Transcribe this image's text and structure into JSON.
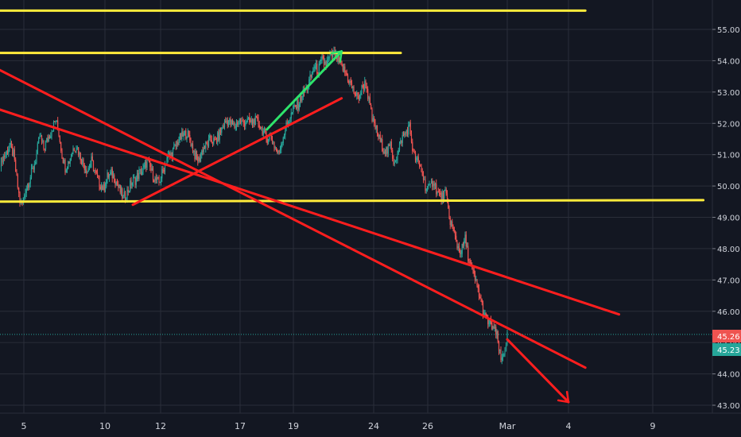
{
  "chart_data": {
    "type": "candlestick",
    "title": "",
    "xlabel": "",
    "ylabel": "",
    "x_ticks": [
      "5",
      "10",
      "12",
      "17",
      "19",
      "24",
      "26",
      "Mar",
      "4",
      "9"
    ],
    "y_ticks": [
      "43.00",
      "44.00",
      "45.00",
      "46.00",
      "47.00",
      "48.00",
      "49.00",
      "50.00",
      "51.00",
      "52.00",
      "53.00",
      "54.00",
      "55.00"
    ],
    "ylim": [
      42.85,
      55.55
    ],
    "grid": true,
    "price_markers": [
      {
        "label": "45.26",
        "value": 45.26,
        "color": "#ef5350"
      },
      {
        "label": "45.23",
        "value": 45.23,
        "color": "#26a69a"
      }
    ],
    "series": [
      {
        "values": [
          [
            0,
            50.6
          ],
          [
            3,
            50.9
          ],
          [
            7,
            51.0
          ],
          [
            12,
            51.3
          ],
          [
            17,
            51.0
          ],
          [
            21,
            50.2
          ],
          [
            25,
            49.5
          ],
          [
            28,
            49.4
          ],
          [
            32,
            49.9
          ],
          [
            37,
            50.2
          ],
          [
            42,
            50.6
          ],
          [
            46,
            51.0
          ],
          [
            50,
            51.6
          ],
          [
            55,
            51.2
          ],
          [
            60,
            51.5
          ],
          [
            65,
            51.8
          ],
          [
            70,
            52.1
          ],
          [
            74,
            51.7
          ],
          [
            78,
            51.0
          ],
          [
            82,
            50.6
          ],
          [
            87,
            50.8
          ],
          [
            92,
            51.2
          ],
          [
            96,
            51.3
          ],
          [
            100,
            51.0
          ],
          [
            105,
            50.7
          ],
          [
            110,
            50.5
          ],
          [
            115,
            50.8
          ],
          [
            120,
            50.4
          ],
          [
            125,
            50.1
          ],
          [
            130,
            49.9
          ],
          [
            135,
            50.3
          ],
          [
            140,
            50.4
          ],
          [
            145,
            50.2
          ],
          [
            150,
            49.9
          ],
          [
            155,
            49.6
          ],
          [
            160,
            49.8
          ],
          [
            165,
            50.1
          ],
          [
            170,
            50.2
          ],
          [
            175,
            50.4
          ],
          [
            180,
            50.5
          ],
          [
            185,
            50.8
          ],
          [
            190,
            50.5
          ],
          [
            195,
            50.2
          ],
          [
            200,
            50.1
          ],
          [
            205,
            50.5
          ],
          [
            210,
            50.9
          ],
          [
            215,
            51.0
          ],
          [
            220,
            51.2
          ],
          [
            225,
            51.5
          ],
          [
            230,
            51.6
          ],
          [
            235,
            51.7
          ],
          [
            240,
            51.4
          ],
          [
            245,
            51.0
          ],
          [
            250,
            50.8
          ],
          [
            255,
            51.2
          ],
          [
            260,
            51.3
          ],
          [
            265,
            51.5
          ],
          [
            270,
            51.4
          ],
          [
            275,
            51.6
          ],
          [
            280,
            51.9
          ],
          [
            285,
            52.1
          ],
          [
            290,
            52.0
          ],
          [
            295,
            51.9
          ],
          [
            300,
            52.1
          ],
          [
            305,
            52.0
          ],
          [
            310,
            52.1
          ],
          [
            315,
            52.0
          ],
          [
            320,
            52.1
          ],
          [
            325,
            52.0
          ],
          [
            330,
            51.8
          ],
          [
            335,
            51.5
          ],
          [
            340,
            51.6
          ],
          [
            345,
            51.3
          ],
          [
            350,
            51.0
          ],
          [
            355,
            51.5
          ],
          [
            360,
            51.9
          ],
          [
            365,
            52.2
          ],
          [
            370,
            52.5
          ],
          [
            375,
            52.6
          ],
          [
            380,
            52.9
          ],
          [
            385,
            53.1
          ],
          [
            390,
            53.4
          ],
          [
            395,
            53.8
          ],
          [
            400,
            53.7
          ],
          [
            405,
            54.0
          ],
          [
            410,
            53.9
          ],
          [
            415,
            54.1
          ],
          [
            420,
            54.2
          ],
          [
            425,
            54.0
          ],
          [
            430,
            53.8
          ],
          [
            435,
            53.6
          ],
          [
            440,
            53.3
          ],
          [
            445,
            53.0
          ],
          [
            450,
            52.8
          ],
          [
            455,
            53.1
          ],
          [
            460,
            53.3
          ],
          [
            464,
            52.7
          ],
          [
            468,
            52.1
          ],
          [
            472,
            51.9
          ],
          [
            477,
            51.5
          ],
          [
            482,
            51.2
          ],
          [
            487,
            51.1
          ],
          [
            491,
            51.3
          ],
          [
            495,
            50.8
          ],
          [
            500,
            51.0
          ],
          [
            505,
            51.5
          ],
          [
            510,
            51.7
          ],
          [
            515,
            51.9
          ],
          [
            520,
            51.0
          ],
          [
            525,
            50.8
          ],
          [
            530,
            50.5
          ],
          [
            535,
            50.0
          ],
          [
            540,
            49.9
          ],
          [
            545,
            50.2
          ],
          [
            550,
            49.8
          ],
          [
            555,
            49.6
          ],
          [
            560,
            49.8
          ],
          [
            565,
            49.0
          ],
          [
            570,
            48.6
          ],
          [
            575,
            48.1
          ],
          [
            580,
            47.9
          ],
          [
            585,
            48.3
          ],
          [
            590,
            47.6
          ],
          [
            595,
            47.2
          ],
          [
            600,
            46.8
          ],
          [
            605,
            46.3
          ],
          [
            610,
            45.8
          ],
          [
            615,
            45.6
          ],
          [
            620,
            45.5
          ],
          [
            625,
            45.2
          ],
          [
            630,
            44.4
          ],
          [
            635,
            44.8
          ],
          [
            638,
            45.23
          ]
        ]
      }
    ],
    "annotations": [
      {
        "type": "horizontal",
        "color": "#ffeb3b",
        "points": [
          [
            "2019-02-02",
            55.6
          ],
          [
            "2019-03-05",
            55.6
          ]
        ]
      },
      {
        "type": "horizontal",
        "color": "#ffeb3b",
        "points": [
          [
            "2019-02-02",
            54.25
          ],
          [
            "2019-02-25",
            54.25
          ]
        ]
      },
      {
        "type": "horizontal",
        "color": "#ffeb3b",
        "points": [
          [
            "2019-02-02",
            49.5
          ],
          [
            "2019-03-12",
            49.55
          ]
        ]
      },
      {
        "type": "trendline",
        "color": "#ff1e1e",
        "points": [
          [
            "2019-02-02",
            54.1
          ],
          [
            "2019-03-05",
            44.2
          ]
        ]
      },
      {
        "type": "trendline",
        "color": "#ff1e1e",
        "points": [
          [
            "2019-02-02",
            52.7
          ],
          [
            "2019-03-07",
            45.9
          ]
        ]
      },
      {
        "type": "trendline",
        "color": "#ff1e1e",
        "points": [
          [
            "2019-02-11",
            49.4
          ],
          [
            "2019-02-22",
            52.8
          ]
        ]
      },
      {
        "type": "arrow",
        "color": "#ff1e1e",
        "points": [
          [
            "2019-03-01",
            45.1
          ],
          [
            "2019-03-04",
            43.1
          ]
        ]
      },
      {
        "type": "arrow",
        "color": "#2ee36b",
        "points": [
          [
            "2019-02-18",
            51.8
          ],
          [
            "2019-02-22",
            54.3
          ]
        ]
      }
    ]
  }
}
